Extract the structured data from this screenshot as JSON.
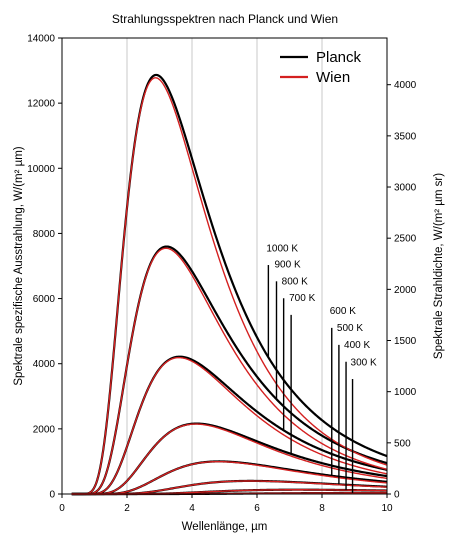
{
  "chart_data": {
    "type": "line",
    "title": "Strahlungsspektren nach Planck und Wien",
    "xlabel": "Wellenlänge, µm",
    "ylabel": "Spektrale spezifische Ausstrahlung, W/(m² µm)",
    "y2label": "Spektrale Strahldichte, W/(m² µm sr)",
    "xlim": [
      0,
      10
    ],
    "ylim": [
      0,
      14000
    ],
    "y2lim": [
      0,
      4456.3
    ],
    "x_ticks": [
      "0",
      "2",
      "4",
      "6",
      "8",
      "10"
    ],
    "y_ticks": [
      "0",
      "2000",
      "4000",
      "6000",
      "8000",
      "10000",
      "12000",
      "14000"
    ],
    "y2_ticks": [
      "0",
      "500",
      "1000",
      "1500",
      "2000",
      "2500",
      "3000",
      "3500",
      "4000"
    ],
    "legend": {
      "position": "top-right",
      "entries": [
        {
          "name": "Planck",
          "color": "#000000"
        },
        {
          "name": "Wien",
          "color": "#d42020"
        }
      ]
    },
    "grid": "vertical",
    "temperatures_K": [
      1000,
      900,
      800,
      700,
      600,
      500,
      400,
      300
    ],
    "temperature_labels": [
      "1000 K",
      "900 K",
      "800 K",
      "700 K",
      "600 K",
      "500 K",
      "400 K",
      "300 K"
    ],
    "series": [
      {
        "name": "Planck",
        "color": "#000000",
        "formula": "planck",
        "peaks_W_m2_um": [
          12880,
          7600,
          4220,
          2160,
          1000,
          402,
          132,
          31
        ]
      },
      {
        "name": "Wien",
        "color": "#d42020",
        "formula": "wien"
      }
    ]
  }
}
